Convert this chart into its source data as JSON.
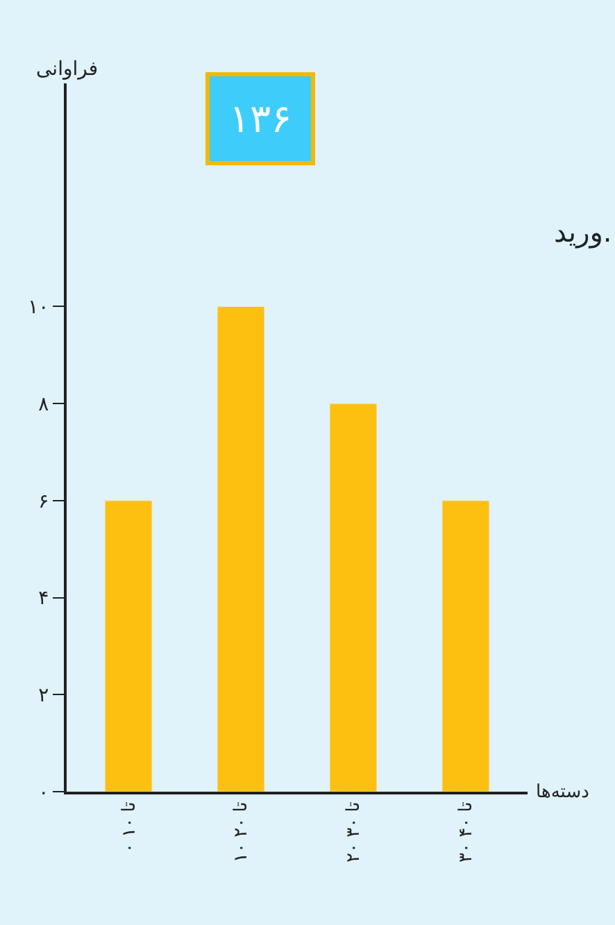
{
  "chart_data": {
    "type": "bar",
    "xlabel": "دسته‌ها",
    "ylabel": "فراوانی",
    "categories": [
      "۰ تا ۱۰",
      "۱۰ تا ۲۰",
      "۲۰ تا ۳۰",
      "۳۰ تا ۴۰"
    ],
    "values": [
      6,
      10,
      8,
      6
    ],
    "color": "#fdc010",
    "ylim": [
      0,
      14.6
    ],
    "yticks": [
      {
        "value": 0,
        "label": "۰"
      },
      {
        "value": 2,
        "label": "۲"
      },
      {
        "value": 4,
        "label": "۴"
      },
      {
        "value": 6,
        "label": "۶"
      },
      {
        "value": 8,
        "label": "۸"
      },
      {
        "value": 10,
        "label": "۱۰"
      }
    ],
    "annotations": [
      "۱۳۶",
      "ورید."
    ],
    "grid": false,
    "legend": false
  }
}
